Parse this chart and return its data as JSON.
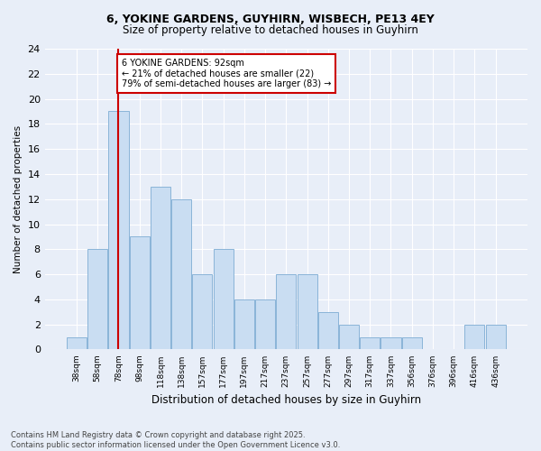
{
  "title1": "6, YOKINE GARDENS, GUYHIRN, WISBECH, PE13 4EY",
  "title2": "Size of property relative to detached houses in Guyhirn",
  "xlabel": "Distribution of detached houses by size in Guyhirn",
  "ylabel": "Number of detached properties",
  "bins": [
    "38sqm",
    "58sqm",
    "78sqm",
    "98sqm",
    "118sqm",
    "138sqm",
    "157sqm",
    "177sqm",
    "197sqm",
    "217sqm",
    "237sqm",
    "257sqm",
    "277sqm",
    "297sqm",
    "317sqm",
    "337sqm",
    "356sqm",
    "376sqm",
    "396sqm",
    "416sqm",
    "436sqm"
  ],
  "values": [
    1,
    8,
    19,
    9,
    13,
    12,
    6,
    8,
    4,
    4,
    6,
    6,
    3,
    2,
    1,
    1,
    1,
    0,
    0,
    2,
    2
  ],
  "bar_color": "#c9ddf2",
  "bar_edge_color": "#8ab4d8",
  "vline_x": 2,
  "vline_color": "#cc0000",
  "annotation_text": "6 YOKINE GARDENS: 92sqm\n← 21% of detached houses are smaller (22)\n79% of semi-detached houses are larger (83) →",
  "annotation_box_color": "#ffffff",
  "annotation_box_edge": "#cc0000",
  "ylim": [
    0,
    24
  ],
  "yticks": [
    0,
    2,
    4,
    6,
    8,
    10,
    12,
    14,
    16,
    18,
    20,
    22,
    24
  ],
  "footer": "Contains HM Land Registry data © Crown copyright and database right 2025.\nContains public sector information licensed under the Open Government Licence v3.0.",
  "bg_color": "#e8eef8",
  "grid_color": "#ffffff"
}
